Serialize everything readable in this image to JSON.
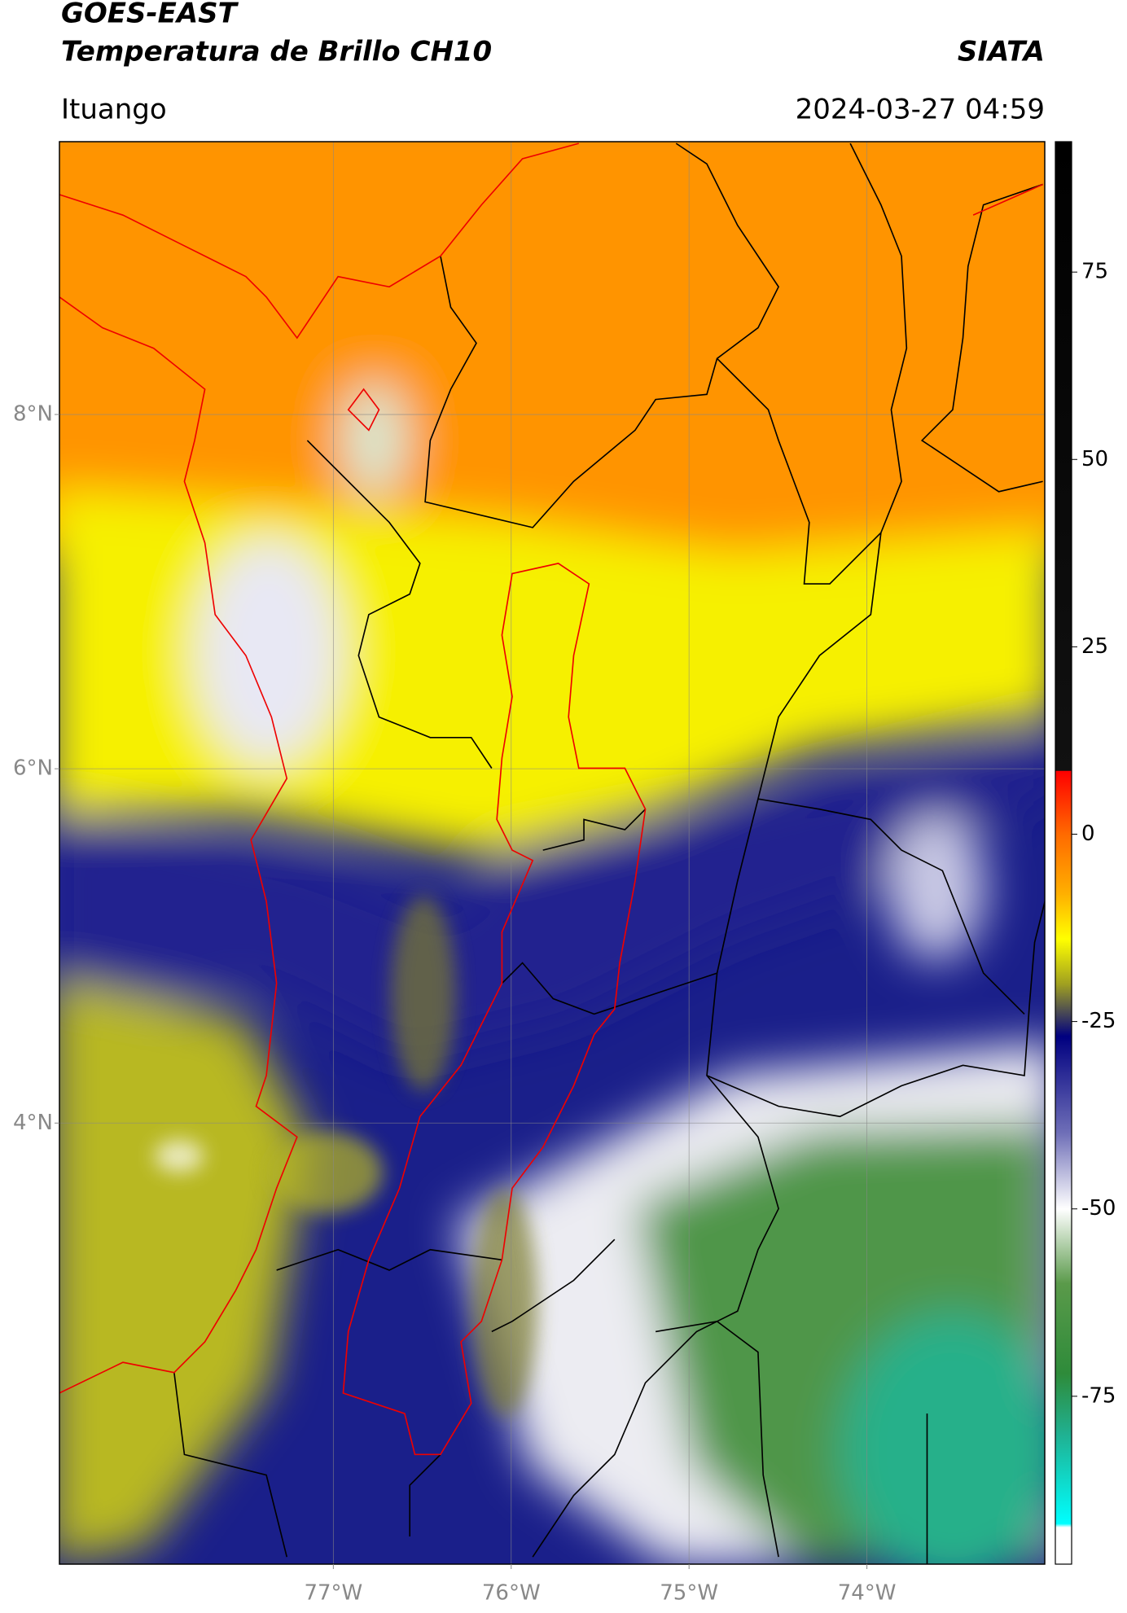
{
  "chart_data": {
    "type": "map",
    "title": "GOES-EAST",
    "subtitle": "Temperatura de Brillo CH10",
    "source": "SIATA",
    "location": "Ituango",
    "datetime": "2024-03-27 04:59",
    "xlim": [
      -78.54,
      -73.0
    ],
    "ylim": [
      1.51,
      9.54
    ],
    "xticks": [
      {
        "value": -77,
        "label": "77°W"
      },
      {
        "value": -76,
        "label": "76°W"
      },
      {
        "value": -75,
        "label": "75°W"
      },
      {
        "value": -74,
        "label": "74°W"
      }
    ],
    "yticks": [
      {
        "value": 4,
        "label": "4°N"
      },
      {
        "value": 6,
        "label": "6°N"
      },
      {
        "value": 8,
        "label": "8°N"
      }
    ],
    "grid": true,
    "clim": [
      -97.4,
      92.4
    ],
    "cticks": [
      75,
      50,
      25,
      0,
      -25,
      -50,
      -75
    ],
    "colormap": [
      {
        "value": 92.4,
        "color": "#000000"
      },
      {
        "value": 8.5,
        "color": "#111111"
      },
      {
        "value": 8.4,
        "color": "#ff0000"
      },
      {
        "value": 0,
        "color": "#ff6a00"
      },
      {
        "value": -8,
        "color": "#ffb000"
      },
      {
        "value": -14,
        "color": "#ffff00"
      },
      {
        "value": -20,
        "color": "#a0a020"
      },
      {
        "value": -27,
        "color": "#000080"
      },
      {
        "value": -40,
        "color": "#7070b8"
      },
      {
        "value": -50,
        "color": "#ffffff"
      },
      {
        "value": -60,
        "color": "#5a9a4a"
      },
      {
        "value": -72,
        "color": "#2e8b3a"
      },
      {
        "value": -80,
        "color": "#20b090"
      },
      {
        "value": -92,
        "color": "#00ffff"
      },
      {
        "value": -92.5,
        "color": "#ffffff"
      },
      {
        "value": -97.4,
        "color": "#ffffff"
      }
    ]
  }
}
